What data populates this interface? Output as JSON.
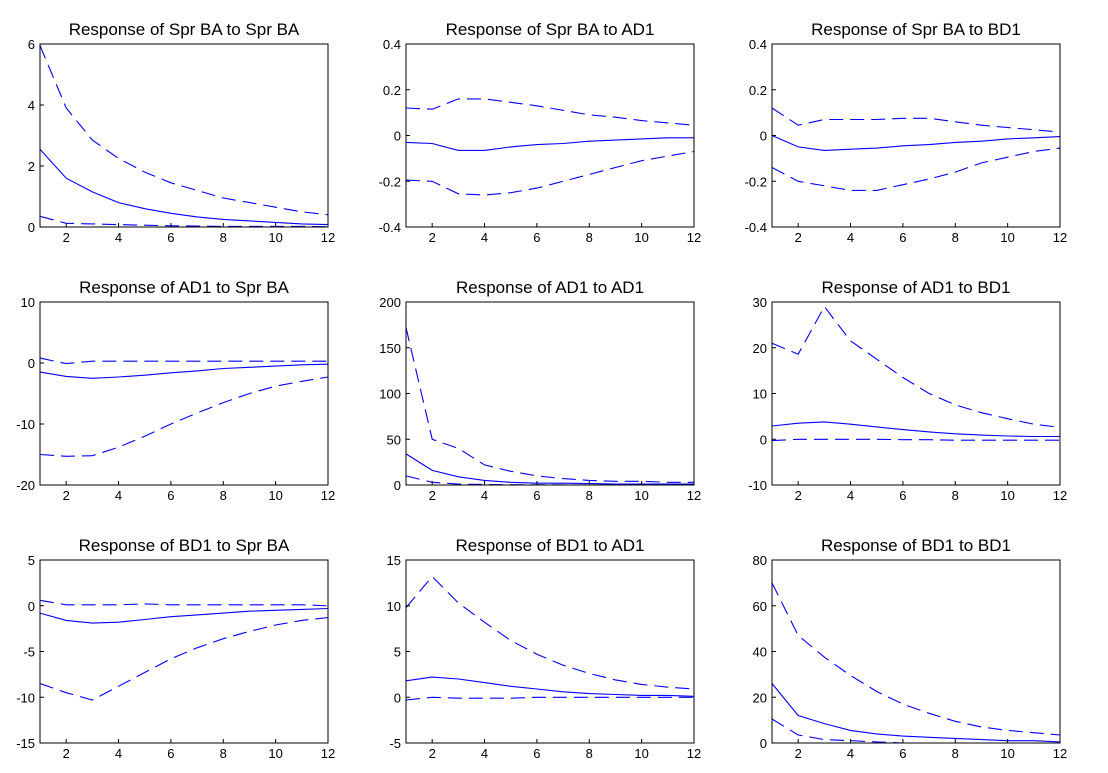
{
  "figure": {
    "line_color": "#0000ff",
    "axis_color": "#000000",
    "background": "#ffffff"
  },
  "chart_data": [
    {
      "type": "line",
      "title": "Response of Spr BA to Spr BA",
      "xlim": [
        1,
        12
      ],
      "ylim": [
        0,
        6
      ],
      "xticks": [
        2,
        4,
        6,
        8,
        10,
        12
      ],
      "yticks": [
        0,
        2,
        4,
        6
      ],
      "ytick_labels": [
        "0",
        "2",
        "4",
        "6"
      ],
      "x": [
        1,
        2,
        3,
        4,
        5,
        6,
        7,
        8,
        9,
        10,
        11,
        12
      ],
      "series": [
        {
          "style": "solid",
          "values": [
            2.55,
            1.6,
            1.15,
            0.8,
            0.6,
            0.45,
            0.33,
            0.25,
            0.2,
            0.15,
            0.1,
            0.08
          ]
        },
        {
          "style": "dashed",
          "values": [
            5.95,
            3.9,
            2.85,
            2.25,
            1.8,
            1.45,
            1.2,
            0.95,
            0.8,
            0.65,
            0.5,
            0.4
          ]
        },
        {
          "style": "dashed",
          "values": [
            0.35,
            0.12,
            0.1,
            0.08,
            0.06,
            0.04,
            0.03,
            0.02,
            0.02,
            0.02,
            0.02,
            0.01
          ]
        }
      ]
    },
    {
      "type": "line",
      "title": "Response of Spr BA to AD1",
      "xlim": [
        1,
        12
      ],
      "ylim": [
        -0.4,
        0.4
      ],
      "xticks": [
        2,
        4,
        6,
        8,
        10,
        12
      ],
      "yticks": [
        -0.4,
        -0.2,
        0,
        0.2,
        0.4
      ],
      "ytick_labels": [
        "-0.4",
        "-0.2",
        "0",
        "0.2",
        "0.4"
      ],
      "x": [
        1,
        2,
        3,
        4,
        5,
        6,
        7,
        8,
        9,
        10,
        11,
        12
      ],
      "series": [
        {
          "style": "solid",
          "values": [
            -0.03,
            -0.035,
            -0.065,
            -0.065,
            -0.05,
            -0.04,
            -0.035,
            -0.025,
            -0.02,
            -0.015,
            -0.01,
            -0.01
          ]
        },
        {
          "style": "dashed",
          "values": [
            0.12,
            0.115,
            0.16,
            0.16,
            0.145,
            0.13,
            0.11,
            0.09,
            0.08,
            0.065,
            0.055,
            0.045
          ]
        },
        {
          "style": "dashed",
          "values": [
            -0.195,
            -0.2,
            -0.255,
            -0.26,
            -0.25,
            -0.23,
            -0.2,
            -0.17,
            -0.14,
            -0.11,
            -0.09,
            -0.07
          ]
        }
      ]
    },
    {
      "type": "line",
      "title": "Response of Spr BA to BD1",
      "xlim": [
        1,
        12
      ],
      "ylim": [
        -0.4,
        0.4
      ],
      "xticks": [
        2,
        4,
        6,
        8,
        10,
        12
      ],
      "yticks": [
        -0.4,
        -0.2,
        0,
        0.2,
        0.4
      ],
      "ytick_labels": [
        "-0.4",
        "-0.2",
        "0",
        "0.2",
        "0.4"
      ],
      "x": [
        1,
        2,
        3,
        4,
        5,
        6,
        7,
        8,
        9,
        10,
        11,
        12
      ],
      "series": [
        {
          "style": "solid",
          "values": [
            0.0,
            -0.05,
            -0.065,
            -0.06,
            -0.055,
            -0.045,
            -0.04,
            -0.03,
            -0.025,
            -0.015,
            -0.01,
            -0.005
          ]
        },
        {
          "style": "dashed",
          "values": [
            0.12,
            0.045,
            0.07,
            0.07,
            0.07,
            0.075,
            0.075,
            0.06,
            0.045,
            0.035,
            0.025,
            0.015
          ]
        },
        {
          "style": "dashed",
          "values": [
            -0.14,
            -0.2,
            -0.22,
            -0.24,
            -0.24,
            -0.215,
            -0.19,
            -0.16,
            -0.12,
            -0.095,
            -0.07,
            -0.055
          ]
        }
      ]
    },
    {
      "type": "line",
      "title": "Response of AD1 to Spr BA",
      "xlim": [
        1,
        12
      ],
      "ylim": [
        -20,
        10
      ],
      "xticks": [
        2,
        4,
        6,
        8,
        10,
        12
      ],
      "yticks": [
        -20,
        -10,
        0,
        10
      ],
      "ytick_labels": [
        "-20",
        "-10",
        "0",
        "10"
      ],
      "x": [
        1,
        2,
        3,
        4,
        5,
        6,
        7,
        8,
        9,
        10,
        11,
        12
      ],
      "series": [
        {
          "style": "solid",
          "values": [
            -1.5,
            -2.2,
            -2.5,
            -2.3,
            -2.0,
            -1.6,
            -1.3,
            -0.9,
            -0.7,
            -0.5,
            -0.3,
            -0.2
          ]
        },
        {
          "style": "dashed",
          "values": [
            0.8,
            -0.1,
            0.3,
            0.3,
            0.3,
            0.3,
            0.3,
            0.3,
            0.3,
            0.3,
            0.3,
            0.3
          ]
        },
        {
          "style": "dashed",
          "values": [
            -15.0,
            -15.3,
            -15.2,
            -13.8,
            -12.0,
            -10.0,
            -8.2,
            -6.5,
            -5.0,
            -3.8,
            -3.0,
            -2.3
          ]
        }
      ]
    },
    {
      "type": "line",
      "title": "Response of AD1 to AD1",
      "xlim": [
        1,
        12
      ],
      "ylim": [
        0,
        200
      ],
      "xticks": [
        2,
        4,
        6,
        8,
        10,
        12
      ],
      "yticks": [
        0,
        50,
        100,
        150,
        200
      ],
      "ytick_labels": [
        "0",
        "50",
        "100",
        "150",
        "200"
      ],
      "x": [
        1,
        2,
        3,
        4,
        5,
        6,
        7,
        8,
        9,
        10,
        11,
        12
      ],
      "series": [
        {
          "style": "solid",
          "values": [
            34,
            16,
            9,
            5,
            3,
            2,
            2,
            1.5,
            1,
            1,
            1,
            1
          ]
        },
        {
          "style": "dashed",
          "values": [
            172,
            50,
            40,
            22,
            15,
            10,
            7,
            5,
            4,
            4,
            3,
            3
          ]
        },
        {
          "style": "dashed",
          "values": [
            10,
            3,
            1,
            0.5,
            0.3,
            0.2,
            0.1,
            0.1,
            0.1,
            0.1,
            0.1,
            0.1
          ]
        }
      ]
    },
    {
      "type": "line",
      "title": "Response of AD1 to BD1",
      "xlim": [
        1,
        12
      ],
      "ylim": [
        -10,
        30
      ],
      "xticks": [
        2,
        4,
        6,
        8,
        10,
        12
      ],
      "yticks": [
        -10,
        0,
        10,
        20,
        30
      ],
      "ytick_labels": [
        "-10",
        "0",
        "10",
        "20",
        "30"
      ],
      "x": [
        1,
        2,
        3,
        4,
        5,
        6,
        7,
        8,
        9,
        10,
        11,
        12
      ],
      "series": [
        {
          "style": "solid",
          "values": [
            2.9,
            3.5,
            3.8,
            3.3,
            2.7,
            2.1,
            1.6,
            1.2,
            0.9,
            0.7,
            0.6,
            0.6
          ]
        },
        {
          "style": "dashed",
          "values": [
            21,
            18.6,
            29,
            21.5,
            17.5,
            13.5,
            10,
            7.5,
            5.8,
            4.5,
            3.3,
            2.6
          ]
        },
        {
          "style": "dashed",
          "values": [
            -0.3,
            0,
            0,
            0,
            0,
            -0.1,
            -0.1,
            -0.2,
            -0.2,
            -0.2,
            -0.2,
            -0.2
          ]
        }
      ]
    },
    {
      "type": "line",
      "title": "Response of BD1 to Spr BA",
      "xlim": [
        1,
        12
      ],
      "ylim": [
        -15,
        5
      ],
      "xticks": [
        2,
        4,
        6,
        8,
        10,
        12
      ],
      "yticks": [
        -15,
        -10,
        -5,
        0,
        5
      ],
      "ytick_labels": [
        "-15",
        "-10",
        "-5",
        "0",
        "5"
      ],
      "x": [
        1,
        2,
        3,
        4,
        5,
        6,
        7,
        8,
        9,
        10,
        11,
        12
      ],
      "series": [
        {
          "style": "solid",
          "values": [
            -0.8,
            -1.6,
            -1.9,
            -1.8,
            -1.5,
            -1.2,
            -1.0,
            -0.8,
            -0.6,
            -0.5,
            -0.4,
            -0.3
          ]
        },
        {
          "style": "dashed",
          "values": [
            0.6,
            0.1,
            0.1,
            0.1,
            0.2,
            0.1,
            0.1,
            0.1,
            0.1,
            0.1,
            0.1,
            0.0
          ]
        },
        {
          "style": "dashed",
          "values": [
            -8.5,
            -9.5,
            -10.3,
            -8.8,
            -7.3,
            -5.8,
            -4.6,
            -3.6,
            -2.8,
            -2.1,
            -1.6,
            -1.3
          ]
        }
      ]
    },
    {
      "type": "line",
      "title": "Response of BD1 to AD1",
      "xlim": [
        1,
        12
      ],
      "ylim": [
        -5,
        15
      ],
      "xticks": [
        2,
        4,
        6,
        8,
        10,
        12
      ],
      "yticks": [
        -5,
        0,
        5,
        10,
        15
      ],
      "ytick_labels": [
        "-5",
        "0",
        "5",
        "10",
        "15"
      ],
      "x": [
        1,
        2,
        3,
        4,
        5,
        6,
        7,
        8,
        9,
        10,
        11,
        12
      ],
      "series": [
        {
          "style": "solid",
          "values": [
            1.8,
            2.2,
            2.0,
            1.6,
            1.2,
            0.9,
            0.6,
            0.4,
            0.3,
            0.2,
            0.2,
            0.1
          ]
        },
        {
          "style": "dashed",
          "values": [
            9.8,
            13.2,
            10.3,
            8.2,
            6.2,
            4.7,
            3.5,
            2.6,
            1.9,
            1.4,
            1.1,
            0.9
          ]
        },
        {
          "style": "dashed",
          "values": [
            -0.3,
            0.0,
            -0.1,
            -0.1,
            -0.1,
            0.0,
            0.0,
            0.0,
            0.0,
            0.0,
            0.0,
            0.0
          ]
        }
      ]
    },
    {
      "type": "line",
      "title": "Response of BD1 to BD1",
      "xlim": [
        1,
        12
      ],
      "ylim": [
        0,
        80
      ],
      "xticks": [
        2,
        4,
        6,
        8,
        10,
        12
      ],
      "yticks": [
        0,
        20,
        40,
        60,
        80
      ],
      "ytick_labels": [
        "0",
        "20",
        "40",
        "60",
        "80"
      ],
      "x": [
        1,
        2,
        3,
        4,
        5,
        6,
        7,
        8,
        9,
        10,
        11,
        12
      ],
      "series": [
        {
          "style": "solid",
          "values": [
            26,
            12,
            8.5,
            5.5,
            4,
            3,
            2.5,
            2,
            1.5,
            1,
            1,
            0.5
          ]
        },
        {
          "style": "dashed",
          "values": [
            70,
            47,
            37.5,
            29.5,
            22.5,
            17,
            13,
            9.5,
            7,
            5.5,
            4.5,
            3.5
          ]
        },
        {
          "style": "dashed",
          "values": [
            10.5,
            3.5,
            1.5,
            1,
            0.5,
            0,
            0,
            0,
            0,
            0,
            0,
            0
          ]
        }
      ]
    }
  ]
}
